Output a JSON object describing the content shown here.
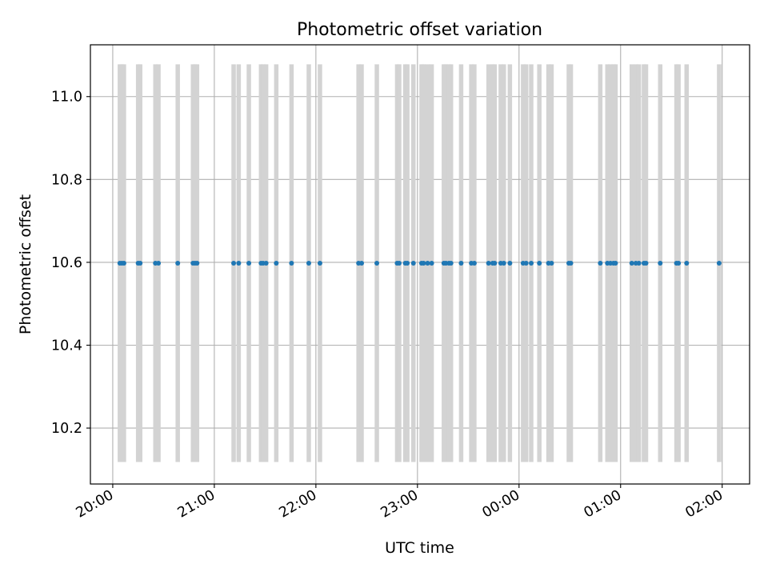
{
  "chart_data": {
    "type": "scatter",
    "title": "Photometric offset variation",
    "xlabel": "UTC time",
    "ylabel": "Photometric offset",
    "grid": true,
    "xlim_hours": [
      19.78,
      26.27
    ],
    "ylim": [
      10.065,
      11.125
    ],
    "xticks": [
      {
        "label": "20:00",
        "hour": 20
      },
      {
        "label": "21:00",
        "hour": 21
      },
      {
        "label": "22:00",
        "hour": 22
      },
      {
        "label": "23:00",
        "hour": 23
      },
      {
        "label": "00:00",
        "hour": 24
      },
      {
        "label": "01:00",
        "hour": 25
      },
      {
        "label": "02:00",
        "hour": 26
      }
    ],
    "yticks": [
      {
        "label": "10.2",
        "value": 10.2
      },
      {
        "label": "10.4",
        "value": 10.4
      },
      {
        "label": "10.6",
        "value": 10.6
      },
      {
        "label": "10.8",
        "value": 10.8
      },
      {
        "label": "11.0",
        "value": 11.0
      }
    ],
    "series": [
      {
        "name": "offset",
        "color": "#1f77b4",
        "error_color": "#d3d3d3",
        "y_value": 10.598,
        "y_error": 0.48,
        "x_hours": [
          20.07,
          20.09,
          20.11,
          20.25,
          20.27,
          20.42,
          20.45,
          20.64,
          20.79,
          20.81,
          20.83,
          21.19,
          21.24,
          21.34,
          21.46,
          21.48,
          21.51,
          21.61,
          21.76,
          21.93,
          22.04,
          22.42,
          22.45,
          22.6,
          22.8,
          22.82,
          22.88,
          22.9,
          22.96,
          23.04,
          23.06,
          23.1,
          23.14,
          23.26,
          23.28,
          23.31,
          23.33,
          23.43,
          23.53,
          23.56,
          23.7,
          23.74,
          23.76,
          23.82,
          23.85,
          23.91,
          24.04,
          24.07,
          24.12,
          24.2,
          24.29,
          24.32,
          24.49,
          24.51,
          24.8,
          24.87,
          24.9,
          24.93,
          24.95,
          25.11,
          25.15,
          25.18,
          25.23,
          25.25,
          25.39,
          25.55,
          25.57,
          25.65,
          25.97
        ]
      }
    ]
  }
}
